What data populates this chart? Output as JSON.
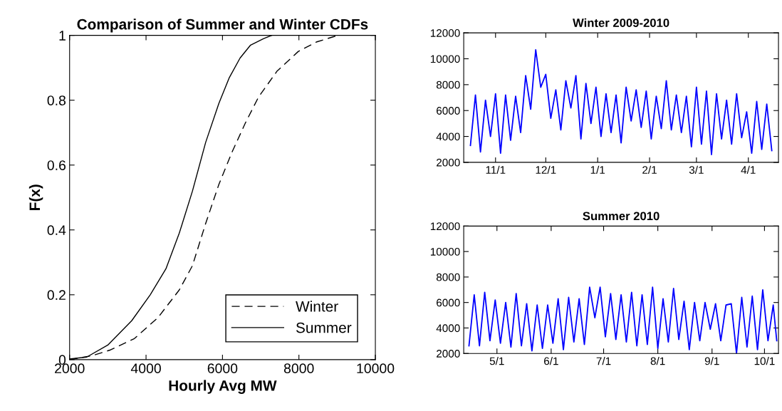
{
  "chart_data": [
    {
      "type": "line",
      "title": "Comparison of Summer and Winter CDFs",
      "xlabel": "Hourly Avg MW",
      "ylabel": "F(x)",
      "xlim": [
        2000,
        10000
      ],
      "ylim": [
        0,
        1
      ],
      "xticks": [
        2000,
        4000,
        6000,
        8000,
        10000
      ],
      "yticks": [
        0,
        0.2,
        0.4,
        0.6,
        0.8,
        1
      ],
      "legend": "bottom right",
      "series": [
        {
          "name": "Winter",
          "color": "#000000",
          "line_style": "dashed",
          "x": [
            2000,
            2590,
            3070,
            3695,
            4315,
            4870,
            5215,
            5560,
            5905,
            6250,
            6600,
            6945,
            7430,
            7980,
            8470,
            9020
          ],
          "values": [
            0,
            0.012,
            0.03,
            0.065,
            0.13,
            0.215,
            0.29,
            0.42,
            0.54,
            0.64,
            0.73,
            0.81,
            0.89,
            0.95,
            0.98,
            1
          ]
        },
        {
          "name": "Summer",
          "color": "#000000",
          "line_style": "solid",
          "x": [
            2000,
            2450,
            3000,
            3625,
            4110,
            4520,
            4870,
            5215,
            5560,
            5905,
            6180,
            6460,
            6735,
            7080,
            7290
          ],
          "values": [
            0.002,
            0.008,
            0.045,
            0.12,
            0.2,
            0.28,
            0.39,
            0.52,
            0.67,
            0.79,
            0.87,
            0.93,
            0.97,
            0.99,
            1
          ]
        }
      ]
    },
    {
      "type": "line",
      "title": "Winter 2009-2010",
      "xlim": [
        "2009-10-13",
        "2010-04-19"
      ],
      "ylim": [
        2000,
        12000
      ],
      "yticks": [
        2000,
        4000,
        6000,
        8000,
        10000,
        12000
      ],
      "xticks": [
        {
          "value": "2009-11-01",
          "label": "11/1"
        },
        {
          "value": "2009-12-01",
          "label": "12/1"
        },
        {
          "value": "2010-01-01",
          "label": "1/1"
        },
        {
          "value": "2010-02-01",
          "label": "2/1"
        },
        {
          "value": "2010-03-01",
          "label": "3/1"
        },
        {
          "value": "2010-04-01",
          "label": "4/1"
        }
      ],
      "series": [
        {
          "color": "#0000ff",
          "x": [
            "2009-10-17",
            "2009-10-20",
            "2009-10-23",
            "2009-10-26",
            "2009-10-29",
            "2009-11-01",
            "2009-11-04",
            "2009-11-07",
            "2009-11-10",
            "2009-11-13",
            "2009-11-16",
            "2009-11-19",
            "2009-11-22",
            "2009-11-25",
            "2009-11-28",
            "2009-12-01",
            "2009-12-04",
            "2009-12-07",
            "2009-12-10",
            "2009-12-13",
            "2009-12-16",
            "2009-12-19",
            "2009-12-22",
            "2009-12-25",
            "2009-12-28",
            "2009-12-31",
            "2010-01-03",
            "2010-01-06",
            "2010-01-09",
            "2010-01-12",
            "2010-01-15",
            "2010-01-18",
            "2010-01-21",
            "2010-01-24",
            "2010-01-27",
            "2010-01-30",
            "2010-02-02",
            "2010-02-05",
            "2010-02-08",
            "2010-02-11",
            "2010-02-14",
            "2010-02-17",
            "2010-02-20",
            "2010-02-23",
            "2010-02-26",
            "2010-03-01",
            "2010-03-04",
            "2010-03-07",
            "2010-03-10",
            "2010-03-13",
            "2010-03-16",
            "2010-03-19",
            "2010-03-22",
            "2010-03-25",
            "2010-03-28",
            "2010-03-31",
            "2010-04-03",
            "2010-04-06",
            "2010-04-09",
            "2010-04-12",
            "2010-04-15"
          ],
          "values": [
            3300,
            7200,
            2800,
            6800,
            4000,
            7300,
            2700,
            7200,
            3700,
            7100,
            4300,
            8700,
            6100,
            10700,
            7800,
            8800,
            5400,
            7600,
            4500,
            8300,
            6200,
            8700,
            3800,
            8100,
            5000,
            7800,
            4000,
            7300,
            4300,
            7200,
            3500,
            7800,
            5200,
            7600,
            4700,
            7500,
            3800,
            7100,
            4600,
            8300,
            4500,
            7200,
            4300,
            7100,
            3200,
            7800,
            3400,
            7500,
            2600,
            7300,
            3800,
            6800,
            3400,
            7300,
            3900,
            5900,
            2700,
            6700,
            3000,
            6500,
            2900
          ]
        }
      ]
    },
    {
      "type": "line",
      "title": "Summer 2010",
      "xlim": [
        "2010-04-12",
        "2010-10-09"
      ],
      "ylim": [
        2000,
        12000
      ],
      "yticks": [
        2000,
        4000,
        6000,
        8000,
        10000,
        12000
      ],
      "xticks": [
        {
          "value": "2010-05-01",
          "label": "5/1"
        },
        {
          "value": "2010-06-01",
          "label": "6/1"
        },
        {
          "value": "2010-07-01",
          "label": "7/1"
        },
        {
          "value": "2010-08-01",
          "label": "8/1"
        },
        {
          "value": "2010-09-01",
          "label": "9/1"
        },
        {
          "value": "2010-10-01",
          "label": "10/1"
        }
      ],
      "series": [
        {
          "color": "#0000ff",
          "x": [
            "2010-04-15",
            "2010-04-18",
            "2010-04-21",
            "2010-04-24",
            "2010-04-27",
            "2010-04-30",
            "2010-05-03",
            "2010-05-06",
            "2010-05-09",
            "2010-05-12",
            "2010-05-15",
            "2010-05-18",
            "2010-05-21",
            "2010-05-24",
            "2010-05-27",
            "2010-05-30",
            "2010-06-02",
            "2010-06-05",
            "2010-06-08",
            "2010-06-11",
            "2010-06-14",
            "2010-06-17",
            "2010-06-20",
            "2010-06-23",
            "2010-06-26",
            "2010-06-29",
            "2010-07-02",
            "2010-07-05",
            "2010-07-08",
            "2010-07-11",
            "2010-07-14",
            "2010-07-17",
            "2010-07-20",
            "2010-07-23",
            "2010-07-26",
            "2010-07-29",
            "2010-08-01",
            "2010-08-04",
            "2010-08-07",
            "2010-08-10",
            "2010-08-13",
            "2010-08-16",
            "2010-08-19",
            "2010-08-22",
            "2010-08-25",
            "2010-08-28",
            "2010-08-31",
            "2010-09-03",
            "2010-09-06",
            "2010-09-09",
            "2010-09-12",
            "2010-09-15",
            "2010-09-18",
            "2010-09-21",
            "2010-09-24",
            "2010-09-27",
            "2010-09-30",
            "2010-10-03",
            "2010-10-06",
            "2010-10-08"
          ],
          "values": [
            2600,
            6600,
            2600,
            6800,
            3000,
            6200,
            2800,
            6000,
            2500,
            6700,
            2600,
            5900,
            2200,
            5800,
            2400,
            5800,
            2800,
            6300,
            2300,
            6400,
            2900,
            6300,
            2700,
            7200,
            4800,
            7200,
            3300,
            6700,
            3100,
            6600,
            2900,
            6800,
            2600,
            6600,
            2700,
            7200,
            2400,
            6300,
            2900,
            7100,
            3100,
            6100,
            2300,
            6000,
            3000,
            6000,
            3900,
            5900,
            3000,
            5800,
            5900,
            2000,
            6400,
            2500,
            6500,
            2300,
            7000,
            3000,
            5800,
            3000
          ]
        }
      ]
    }
  ]
}
